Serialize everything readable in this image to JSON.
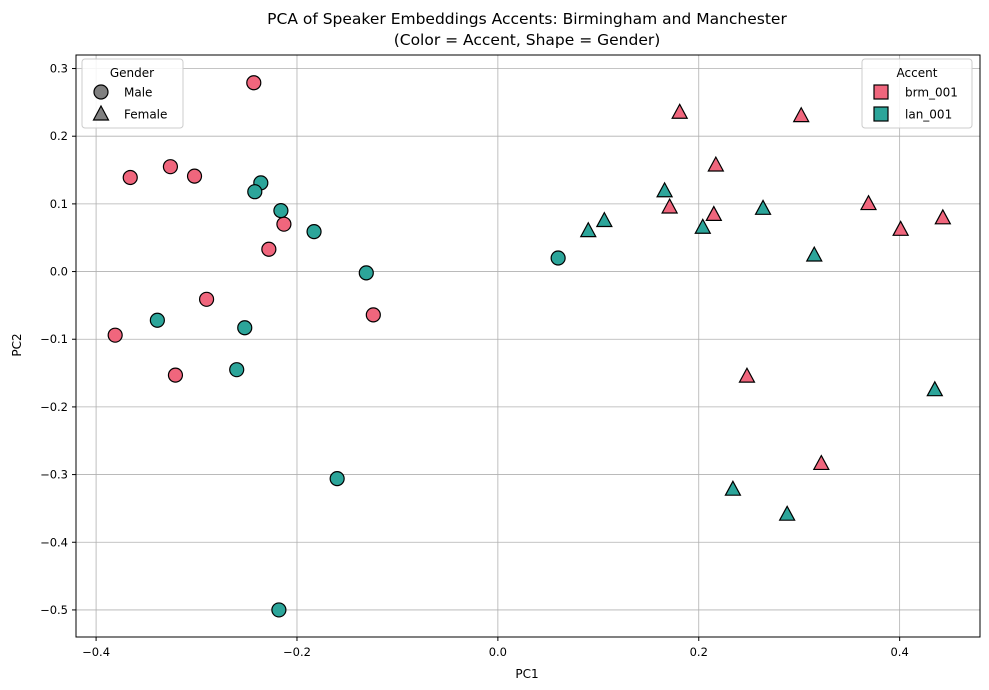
{
  "chart_data": {
    "type": "scatter",
    "title_line1": "PCA of Speaker Embeddings Accents: Birmingham and Manchester",
    "title_line2": "(Color = Accent, Shape = Gender)",
    "xlabel": "PC1",
    "ylabel": "PC2",
    "xlim": [
      -0.42,
      0.48
    ],
    "ylim": [
      -0.54,
      0.32
    ],
    "x_ticks": [
      -0.4,
      -0.2,
      0.0,
      0.2,
      0.4
    ],
    "x_tick_labels": [
      "−0.4",
      "−0.2",
      "0.0",
      "0.2",
      "0.4"
    ],
    "y_ticks": [
      -0.5,
      -0.4,
      -0.3,
      -0.2,
      -0.1,
      0.0,
      0.1,
      0.2,
      0.3
    ],
    "y_tick_labels": [
      "−0.5",
      "−0.4",
      "−0.3",
      "−0.2",
      "−0.1",
      "0.0",
      "0.1",
      "0.2",
      "0.3"
    ],
    "grid": true,
    "accent_colors": {
      "brm_001": "#f0667d",
      "lan_001": "#2ca59a"
    },
    "gender_legend": {
      "title": "Gender",
      "placement": "top-left",
      "items": [
        {
          "label": "Male",
          "shape": "circle"
        },
        {
          "label": "Female",
          "shape": "triangle"
        }
      ]
    },
    "accent_legend": {
      "title": "Accent",
      "placement": "top-right",
      "items": [
        {
          "label": "brm_001",
          "color": "#f0667d"
        },
        {
          "label": "lan_001",
          "color": "#2ca59a"
        }
      ]
    },
    "points": [
      {
        "x": -0.243,
        "y": 0.279,
        "accent": "brm_001",
        "gender": "Male"
      },
      {
        "x": -0.366,
        "y": 0.139,
        "accent": "brm_001",
        "gender": "Male"
      },
      {
        "x": -0.326,
        "y": 0.155,
        "accent": "brm_001",
        "gender": "Male"
      },
      {
        "x": -0.302,
        "y": 0.141,
        "accent": "brm_001",
        "gender": "Male"
      },
      {
        "x": -0.213,
        "y": 0.07,
        "accent": "brm_001",
        "gender": "Male"
      },
      {
        "x": -0.228,
        "y": 0.033,
        "accent": "brm_001",
        "gender": "Male"
      },
      {
        "x": -0.29,
        "y": -0.041,
        "accent": "brm_001",
        "gender": "Male"
      },
      {
        "x": -0.381,
        "y": -0.094,
        "accent": "brm_001",
        "gender": "Male"
      },
      {
        "x": -0.321,
        "y": -0.153,
        "accent": "brm_001",
        "gender": "Male"
      },
      {
        "x": -0.124,
        "y": -0.064,
        "accent": "brm_001",
        "gender": "Male"
      },
      {
        "x": -0.236,
        "y": 0.131,
        "accent": "lan_001",
        "gender": "Male"
      },
      {
        "x": -0.242,
        "y": 0.118,
        "accent": "lan_001",
        "gender": "Male"
      },
      {
        "x": -0.216,
        "y": 0.09,
        "accent": "lan_001",
        "gender": "Male"
      },
      {
        "x": -0.183,
        "y": 0.059,
        "accent": "lan_001",
        "gender": "Male"
      },
      {
        "x": -0.131,
        "y": -0.002,
        "accent": "lan_001",
        "gender": "Male"
      },
      {
        "x": -0.339,
        "y": -0.072,
        "accent": "lan_001",
        "gender": "Male"
      },
      {
        "x": -0.252,
        "y": -0.083,
        "accent": "lan_001",
        "gender": "Male"
      },
      {
        "x": -0.26,
        "y": -0.145,
        "accent": "lan_001",
        "gender": "Male"
      },
      {
        "x": -0.16,
        "y": -0.306,
        "accent": "lan_001",
        "gender": "Male"
      },
      {
        "x": -0.218,
        "y": -0.5,
        "accent": "lan_001",
        "gender": "Male"
      },
      {
        "x": 0.06,
        "y": 0.02,
        "accent": "lan_001",
        "gender": "Male"
      },
      {
        "x": 0.181,
        "y": 0.236,
        "accent": "brm_001",
        "gender": "Female"
      },
      {
        "x": 0.302,
        "y": 0.231,
        "accent": "brm_001",
        "gender": "Female"
      },
      {
        "x": 0.217,
        "y": 0.158,
        "accent": "brm_001",
        "gender": "Female"
      },
      {
        "x": 0.171,
        "y": 0.096,
        "accent": "brm_001",
        "gender": "Female"
      },
      {
        "x": 0.215,
        "y": 0.085,
        "accent": "brm_001",
        "gender": "Female"
      },
      {
        "x": 0.369,
        "y": 0.101,
        "accent": "brm_001",
        "gender": "Female"
      },
      {
        "x": 0.401,
        "y": 0.063,
        "accent": "brm_001",
        "gender": "Female"
      },
      {
        "x": 0.443,
        "y": 0.08,
        "accent": "brm_001",
        "gender": "Female"
      },
      {
        "x": 0.248,
        "y": -0.154,
        "accent": "brm_001",
        "gender": "Female"
      },
      {
        "x": 0.322,
        "y": -0.283,
        "accent": "brm_001",
        "gender": "Female"
      },
      {
        "x": 0.166,
        "y": 0.12,
        "accent": "lan_001",
        "gender": "Female"
      },
      {
        "x": 0.106,
        "y": 0.076,
        "accent": "lan_001",
        "gender": "Female"
      },
      {
        "x": 0.09,
        "y": 0.061,
        "accent": "lan_001",
        "gender": "Female"
      },
      {
        "x": 0.204,
        "y": 0.066,
        "accent": "lan_001",
        "gender": "Female"
      },
      {
        "x": 0.264,
        "y": 0.094,
        "accent": "lan_001",
        "gender": "Female"
      },
      {
        "x": 0.315,
        "y": 0.025,
        "accent": "lan_001",
        "gender": "Female"
      },
      {
        "x": 0.435,
        "y": -0.174,
        "accent": "lan_001",
        "gender": "Female"
      },
      {
        "x": 0.234,
        "y": -0.321,
        "accent": "lan_001",
        "gender": "Female"
      },
      {
        "x": 0.288,
        "y": -0.358,
        "accent": "lan_001",
        "gender": "Female"
      }
    ]
  }
}
